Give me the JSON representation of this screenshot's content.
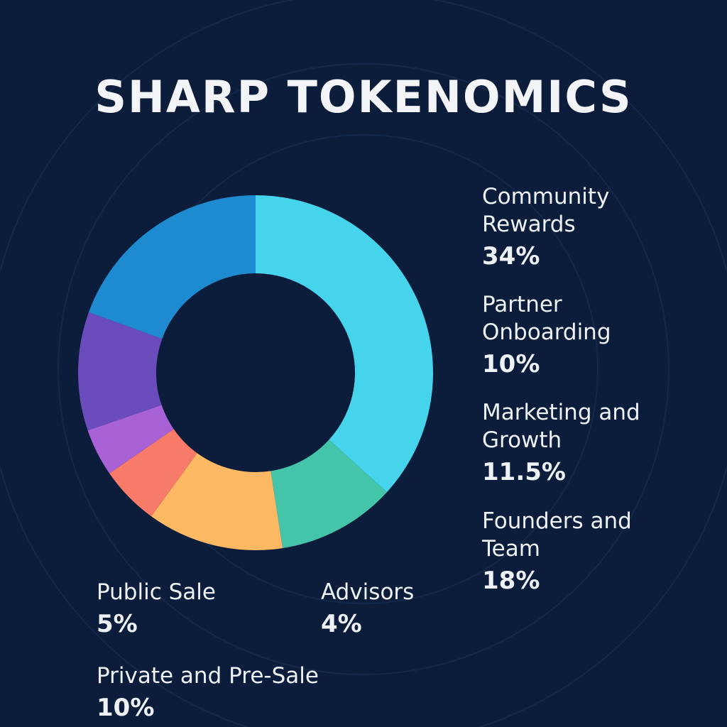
{
  "chart_data": {
    "type": "donut",
    "title": "SHARP TOKENOMICS",
    "categories": [
      "Community Rewards",
      "Partner Onboarding",
      "Marketing and Growth",
      "Public Sale",
      "Advisors",
      "Private and Pre-Sale",
      "Founders and Team"
    ],
    "values": [
      34,
      10,
      11.5,
      5,
      4,
      10,
      18
    ],
    "value_labels": [
      "34%",
      "10%",
      "11.5%",
      "5%",
      "4%",
      "10%",
      "18%"
    ],
    "colors": [
      "#45d4ec",
      "#44c4a8",
      "#fdb863",
      "#f77b68",
      "#a961d6",
      "#6a4cbd",
      "#1e8ad0"
    ]
  }
}
